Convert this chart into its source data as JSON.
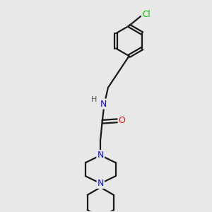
{
  "bg_color": "#e8e8e8",
  "bond_color": "#1a1a1a",
  "N_color": "#1010ee",
  "O_color": "#ee1010",
  "Cl_color": "#00bb00",
  "H_color": "#555555",
  "line_width": 1.6,
  "figsize": [
    3.0,
    3.0
  ],
  "dpi": 100,
  "xlim": [
    0,
    10
  ],
  "ylim": [
    0,
    10
  ]
}
